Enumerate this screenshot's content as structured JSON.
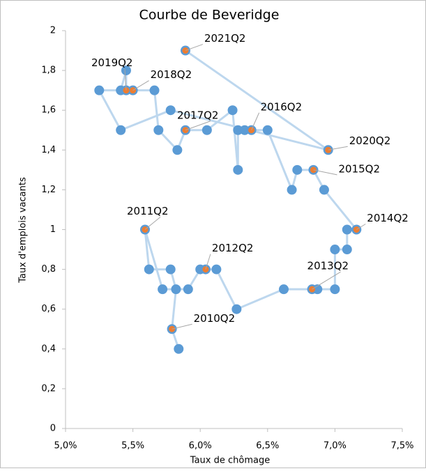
{
  "chart_data": {
    "type": "scatter",
    "title": "Courbe de Beveridge",
    "x_label": "Taux de chômage",
    "y_label": "Taux d'emplois vacants",
    "xlim": [
      5.0,
      7.5
    ],
    "xticks": [
      {
        "value": 5.0,
        "label": "5,0%"
      },
      {
        "value": 5.5,
        "label": "5,5%"
      },
      {
        "value": 6.0,
        "label": "6,0%"
      },
      {
        "value": 6.5,
        "label": "6,5%"
      },
      {
        "value": 7.0,
        "label": "7,0%"
      },
      {
        "value": 7.5,
        "label": "7,5%"
      }
    ],
    "ylim": [
      0,
      2
    ],
    "yticks": [
      0,
      {
        "value": 0.2,
        "label": "0,2"
      },
      {
        "value": 0.4,
        "label": "0,4"
      },
      {
        "value": 0.6,
        "label": "0,6"
      },
      {
        "value": 0.8,
        "label": "0,8"
      },
      1,
      {
        "value": 1.2,
        "label": "1,2"
      },
      {
        "value": 1.4,
        "label": "1,4"
      },
      {
        "value": 1.6,
        "label": "1,6"
      },
      {
        "value": 1.8,
        "label": "1,8"
      },
      2
    ],
    "line_color": "#bdd7ee",
    "color": "#5b9bd5",
    "highlight_color": "#ed7d31",
    "series": [
      {
        "x": [
          5.84,
          5.79,
          5.82,
          5.78,
          5.62,
          5.59,
          5.72,
          5.91,
          6.0,
          6.04,
          6.12,
          6.27,
          6.62,
          6.83,
          6.87,
          7.0,
          7.0,
          7.09,
          7.09,
          7.16,
          6.92,
          6.84,
          6.72,
          6.68,
          6.5,
          6.38,
          6.33,
          6.28,
          6.28,
          6.24,
          6.05,
          5.89,
          5.83,
          5.69,
          5.66,
          5.5,
          5.41,
          5.45,
          5.45,
          5.25,
          5.41,
          5.78,
          6.95,
          5.89
        ],
        "values": [
          0.4,
          0.5,
          0.7,
          0.8,
          0.8,
          1.0,
          0.7,
          0.7,
          0.8,
          0.8,
          0.8,
          0.6,
          0.7,
          0.7,
          0.7,
          0.7,
          0.9,
          0.9,
          1.0,
          1.0,
          1.2,
          1.3,
          1.3,
          1.2,
          1.5,
          1.5,
          1.5,
          1.5,
          1.3,
          1.6,
          1.5,
          1.5,
          1.4,
          1.5,
          1.7,
          1.7,
          1.7,
          1.8,
          1.7,
          1.7,
          1.5,
          1.6,
          1.4,
          1.9
        ],
        "labels": [
          null,
          "2010Q2",
          null,
          null,
          null,
          "2011Q2",
          null,
          null,
          null,
          "2012Q2",
          null,
          null,
          null,
          "2013Q2",
          null,
          null,
          null,
          null,
          null,
          "2014Q2",
          null,
          "2015Q2",
          null,
          null,
          null,
          "2016Q2",
          null,
          null,
          null,
          null,
          null,
          "2017Q2",
          null,
          null,
          null,
          "2018Q2",
          null,
          null,
          "2019Q2",
          null,
          null,
          null,
          "2020Q2",
          "2021Q2"
        ]
      }
    ]
  }
}
